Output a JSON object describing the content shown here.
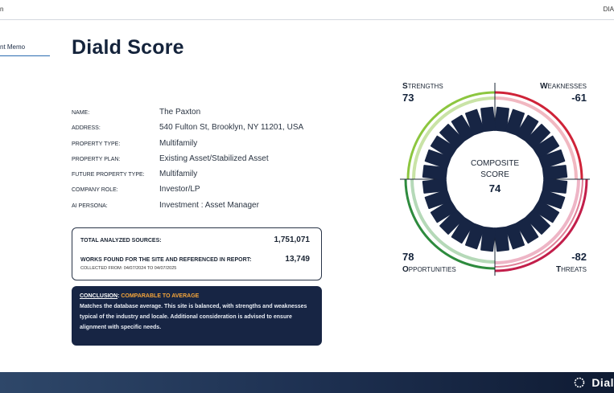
{
  "topbar": {
    "left": "n",
    "right": "DIA"
  },
  "sidebar": {
    "items": [
      {
        "label": "nt Memo"
      }
    ]
  },
  "page": {
    "title": "Diald Score"
  },
  "info": [
    {
      "label": "NAME:",
      "value": "The Paxton"
    },
    {
      "label": "ADDRESS:",
      "value": "540 Fulton St, Brooklyn, NY 11201, USA"
    },
    {
      "label": "PROPERTY TYPE:",
      "value": "Multifamily"
    },
    {
      "label": "PROPERTY PLAN:",
      "value": "Existing Asset/Stabilized Asset"
    },
    {
      "label": "FUTURE PROPERTY TYPE:",
      "value": "Multifamily"
    },
    {
      "label": "COMPANY ROLE:",
      "value": "Investor/LP"
    },
    {
      "label": "AI PERSONA:",
      "value": "Investment : Asset Manager"
    }
  ],
  "totals": {
    "sources_label": "TOTAL ANALYZED SOURCES:",
    "sources_value": "1,751,071",
    "works_label": "WORKS FOUND FOR THE SITE AND REFERENCED IN REPORT:",
    "works_value": "13,749",
    "collected": "COLLECTED FROM: 04/07/2024 TO 04/07/2025"
  },
  "conclusion": {
    "key": "CONCLUSION",
    "value": "COMPARABLE TO AVERAGE",
    "body": "Matches the database average. This site is balanced, with strengths and weaknesses typical of the industry and locale. Additional consideration is advised to ensure alignment with specific needs."
  },
  "score": {
    "composite_line1": "COMPOSITE",
    "composite_line2": "SCORE",
    "composite_value": "74",
    "strengths": {
      "cap": "S",
      "rest": "TRENGTHS",
      "value": "73"
    },
    "weaknesses": {
      "cap": "W",
      "rest": "EAKNESSES",
      "value": "-61"
    },
    "opportunities": {
      "cap": "O",
      "rest": "PPORTUNITIES",
      "value": "78"
    },
    "threats": {
      "cap": "T",
      "rest": "HREATS",
      "value": "-82"
    },
    "colors": {
      "strengths": "#8cc63f",
      "weaknesses": "#cf2338",
      "opportunities": "#2e8b3e",
      "threats": "#c21e4a",
      "segments": "#172544"
    }
  },
  "footer": {
    "brand": "Dial"
  }
}
